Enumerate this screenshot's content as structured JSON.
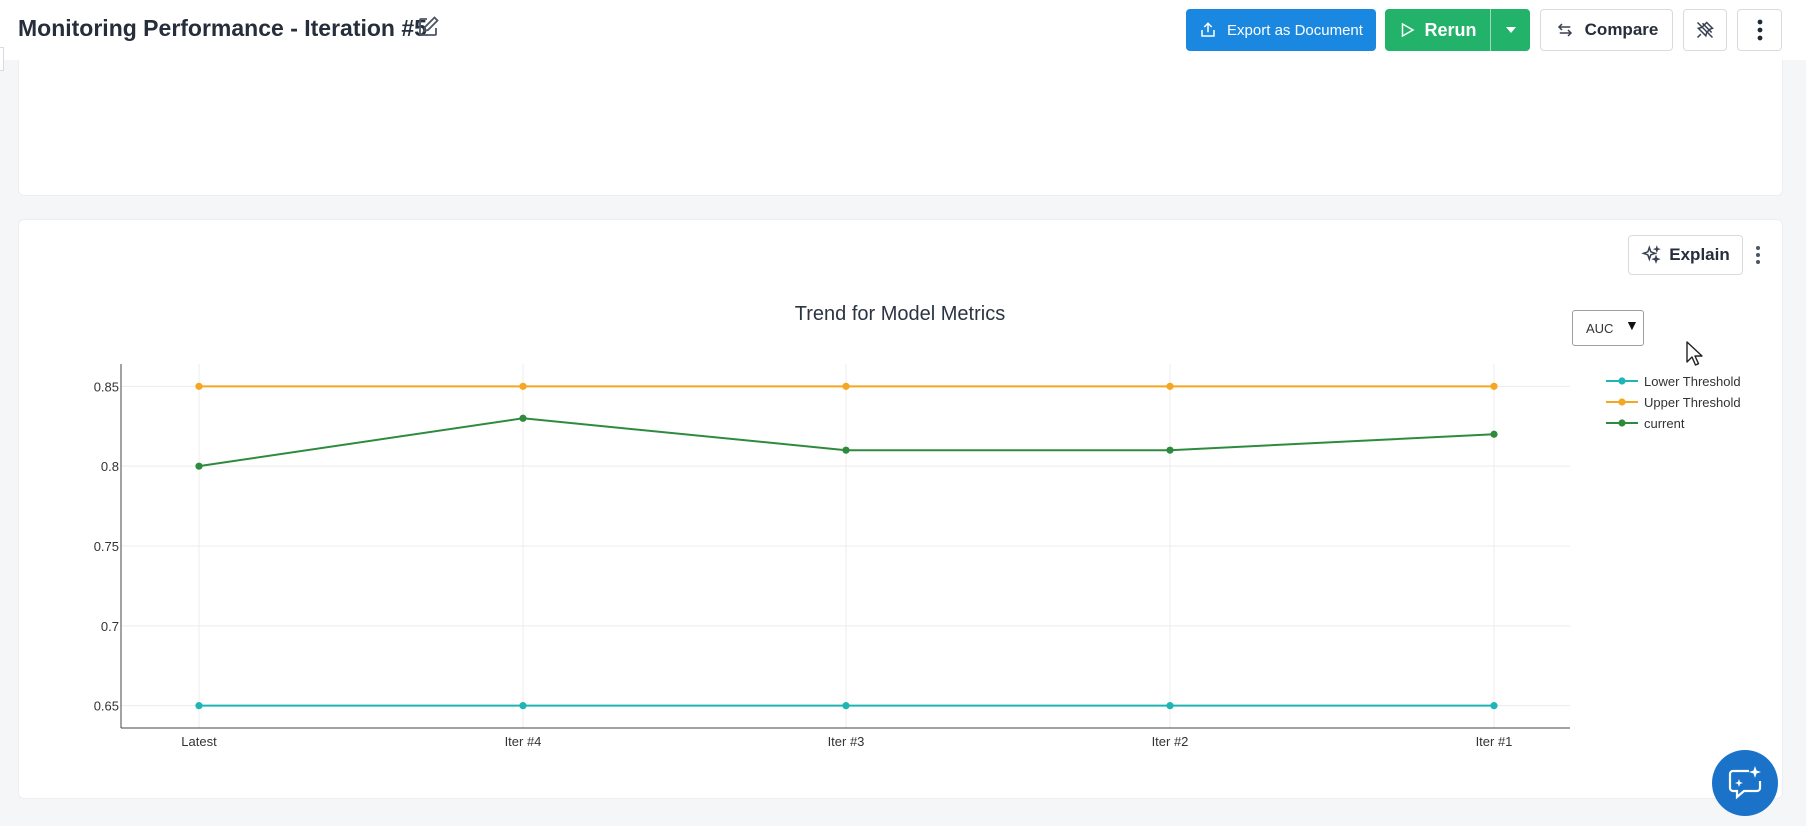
{
  "header": {
    "title": "Monitoring Performance - Iteration #5",
    "export_label": "Export as Document",
    "rerun_label": "Rerun",
    "compare_label": "Compare"
  },
  "explain_label": "Explain",
  "metric_select": {
    "value": "AUC"
  },
  "colors": {
    "primary": "#1a88e0",
    "success": "#22b26a",
    "lower": "#1fb5b5",
    "upper": "#f5a623",
    "current": "#2e8b3e"
  },
  "chart_data": {
    "type": "line",
    "title": "Trend for Model Metrics",
    "categories": [
      "Latest",
      "Iter #4",
      "Iter #3",
      "Iter #2",
      "Iter #1"
    ],
    "ylim": [
      0.636,
      0.864
    ],
    "yticks": [
      0.65,
      0.7,
      0.75,
      0.8,
      0.85
    ],
    "ytick_labels": [
      "0.65",
      "0.7",
      "0.75",
      "0.8",
      "0.85"
    ],
    "grid": true,
    "legend_position": "top-right",
    "series": [
      {
        "name": "Lower Threshold",
        "color": "#1fb5b5",
        "values": [
          0.65,
          0.65,
          0.65,
          0.65,
          0.65
        ]
      },
      {
        "name": "Upper Threshold",
        "color": "#f5a623",
        "values": [
          0.85,
          0.85,
          0.85,
          0.85,
          0.85
        ]
      },
      {
        "name": "current",
        "color": "#2e8b3e",
        "values": [
          0.8,
          0.83,
          0.81,
          0.81,
          0.82
        ]
      }
    ]
  }
}
